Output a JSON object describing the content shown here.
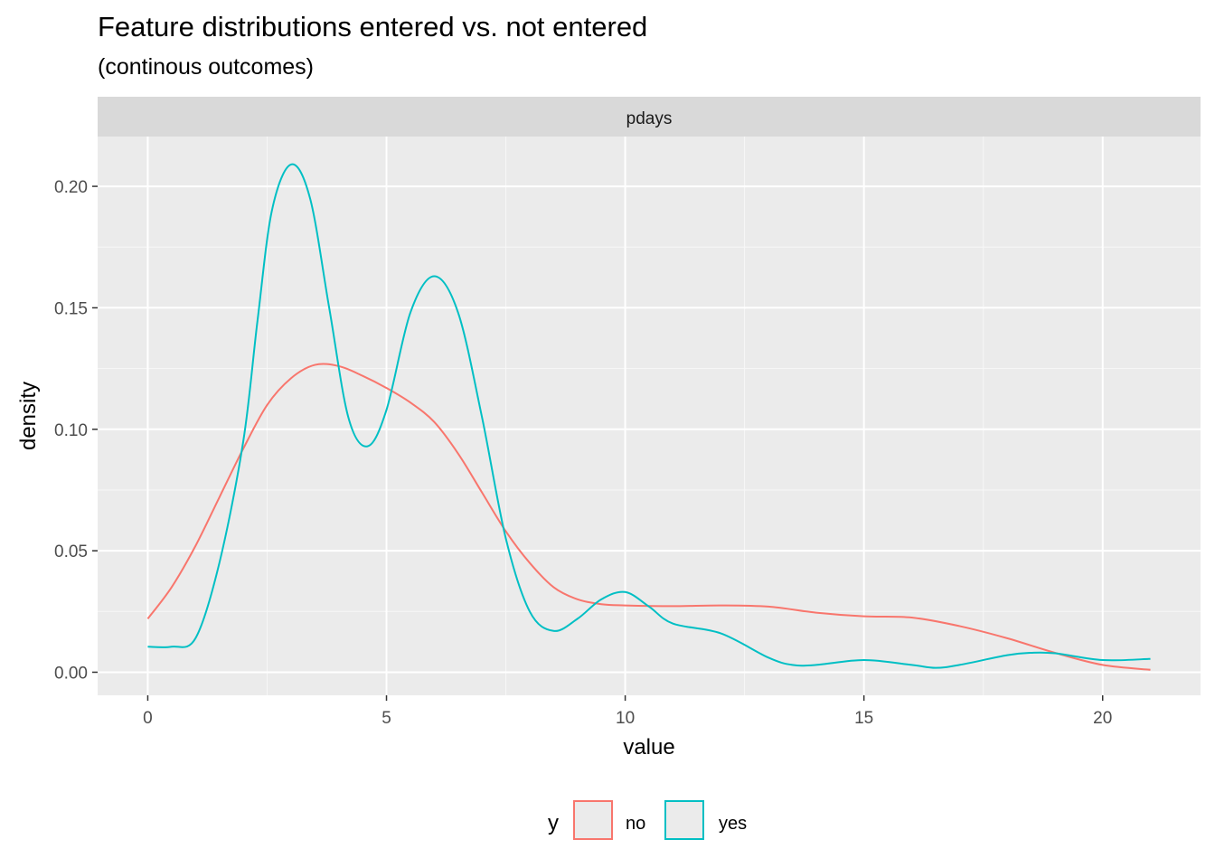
{
  "title": "Feature distributions entered vs. not entered",
  "subtitle": "(continous outcomes)",
  "chart_data": {
    "type": "line",
    "facet": "pdays",
    "xlabel": "value",
    "ylabel": "density",
    "xlim": [
      -1.05,
      22.05
    ],
    "ylim": [
      -0.0095,
      0.2205
    ],
    "x_ticks": [
      0,
      5,
      10,
      15,
      20
    ],
    "y_ticks": [
      0.0,
      0.05,
      0.1,
      0.15,
      0.2
    ],
    "x_tick_labels": [
      "0",
      "5",
      "10",
      "15",
      "20"
    ],
    "y_tick_labels": [
      "0.00",
      "0.05",
      "0.10",
      "0.15",
      "0.20"
    ],
    "grid": true,
    "legend": {
      "title": "y",
      "position": "bottom"
    },
    "series": [
      {
        "name": "no",
        "color": "#F8766D",
        "x": [
          0,
          0.5,
          1,
          1.5,
          2,
          2.5,
          3,
          3.5,
          4,
          4.5,
          5,
          5.5,
          6,
          6.5,
          7,
          7.5,
          8,
          8.5,
          9,
          9.5,
          10,
          11,
          12,
          13,
          14,
          15,
          16,
          17,
          18,
          19,
          20,
          21
        ],
        "y": [
          0.022,
          0.035,
          0.052,
          0.072,
          0.092,
          0.11,
          0.121,
          0.1265,
          0.126,
          0.122,
          0.117,
          0.111,
          0.103,
          0.09,
          0.074,
          0.058,
          0.045,
          0.035,
          0.03,
          0.028,
          0.0275,
          0.0272,
          0.0275,
          0.027,
          0.0245,
          0.023,
          0.0225,
          0.019,
          0.014,
          0.008,
          0.003,
          0.001
        ]
      },
      {
        "name": "yes",
        "color": "#00BFC4",
        "x": [
          0,
          0.5,
          1,
          1.5,
          2,
          2.3,
          2.6,
          3.0,
          3.4,
          3.8,
          4.2,
          4.6,
          5.0,
          5.5,
          6.0,
          6.5,
          7.0,
          7.5,
          8.0,
          8.5,
          9.0,
          9.5,
          10.0,
          10.5,
          11.0,
          12.0,
          13.0,
          13.5,
          14.0,
          15.0,
          16.0,
          16.5,
          17.0,
          18.0,
          18.5,
          19.0,
          20.0,
          21.0
        ],
        "y": [
          0.0105,
          0.0105,
          0.014,
          0.045,
          0.095,
          0.145,
          0.19,
          0.209,
          0.195,
          0.15,
          0.105,
          0.093,
          0.108,
          0.148,
          0.163,
          0.148,
          0.105,
          0.055,
          0.025,
          0.017,
          0.022,
          0.03,
          0.033,
          0.027,
          0.02,
          0.016,
          0.006,
          0.003,
          0.003,
          0.005,
          0.003,
          0.0018,
          0.003,
          0.007,
          0.008,
          0.0078,
          0.005,
          0.0055
        ]
      }
    ]
  }
}
